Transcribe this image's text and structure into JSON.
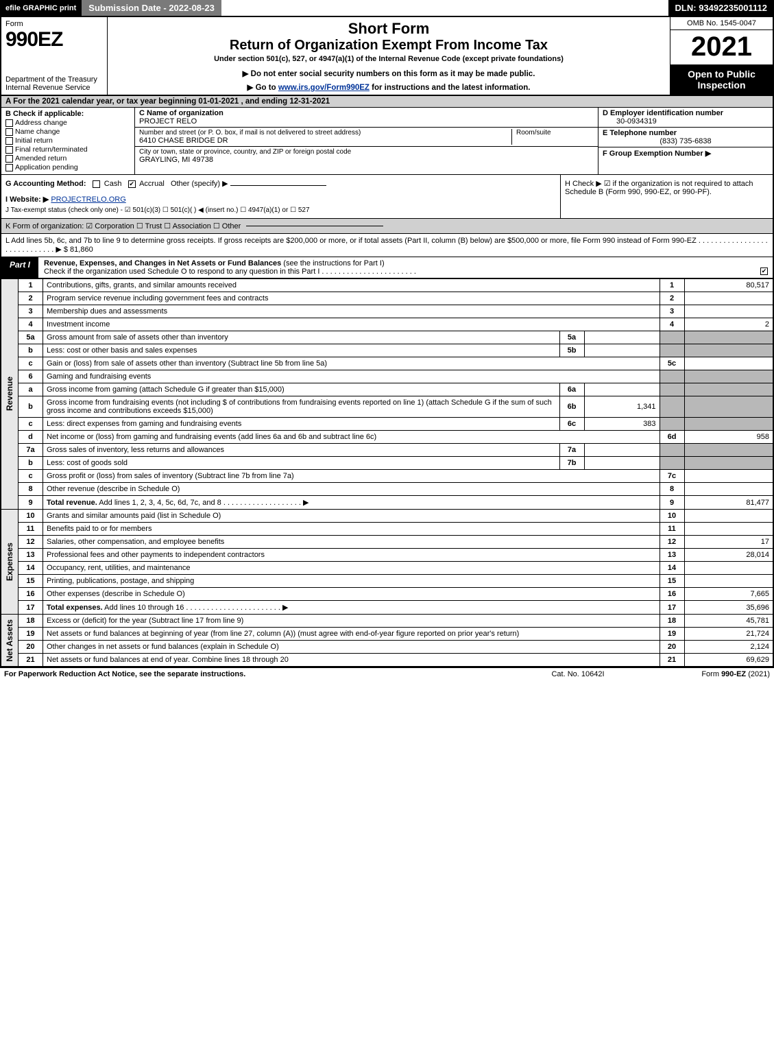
{
  "topbar": {
    "efile": "efile GRAPHIC print",
    "subdate_label": "Submission Date - 2022-08-23",
    "dln": "DLN: 93492235001112"
  },
  "header": {
    "form_word": "Form",
    "form_num": "990EZ",
    "dept": "Department of the Treasury\nInternal Revenue Service",
    "short_form": "Short Form",
    "title": "Return of Organization Exempt From Income Tax",
    "subtitle": "Under section 501(c), 527, or 4947(a)(1) of the Internal Revenue Code (except private foundations)",
    "note1": "▶ Do not enter social security numbers on this form as it may be made public.",
    "note2_pre": "▶ Go to ",
    "note2_link": "www.irs.gov/Form990EZ",
    "note2_post": " for instructions and the latest information.",
    "omb": "OMB No. 1545-0047",
    "year": "2021",
    "open": "Open to Public Inspection"
  },
  "A": "A  For the 2021 calendar year, or tax year beginning 01-01-2021 , and ending 12-31-2021",
  "B": {
    "hdr": "B  Check if applicable:",
    "opts": [
      "Address change",
      "Name change",
      "Initial return",
      "Final return/terminated",
      "Amended return",
      "Application pending"
    ]
  },
  "C": {
    "name_lbl": "C Name of organization",
    "name": "PROJECT RELO",
    "street_lbl": "Number and street (or P. O. box, if mail is not delivered to street address)",
    "street": "6410 CHASE BRIDGE DR",
    "room_lbl": "Room/suite",
    "city_lbl": "City or town, state or province, country, and ZIP or foreign postal code",
    "city": "GRAYLING, MI  49738"
  },
  "D": {
    "lbl": "D Employer identification number",
    "val": "30-0934319"
  },
  "E": {
    "lbl": "E Telephone number",
    "val": "(833) 735-6838"
  },
  "F": {
    "lbl": "F Group Exemption Number   ▶",
    "val": ""
  },
  "G": {
    "lbl": "G Accounting Method:",
    "cash": "Cash",
    "accrual": "Accrual",
    "other": "Other (specify) ▶"
  },
  "H": "H   Check ▶  ☑  if the organization is not required to attach Schedule B (Form 990, 990-EZ, or 990-PF).",
  "I": {
    "lbl": "I Website: ▶",
    "val": "PROJECTRELO.ORG"
  },
  "J": "J Tax-exempt status (check only one) -  ☑ 501(c)(3)  ☐ 501(c)(  ) ◀ (insert no.)  ☐ 4947(a)(1) or  ☐ 527",
  "K": "K Form of organization:   ☑ Corporation   ☐ Trust   ☐ Association   ☐ Other",
  "L": {
    "text": "L Add lines 5b, 6c, and 7b to line 9 to determine gross receipts. If gross receipts are $200,000 or more, or if total assets (Part II, column (B) below) are $500,000 or more, file Form 990 instead of Form 990-EZ  . . . . . . . . . . . . . . . . . . . . . . . . . . . . .  ▶ $",
    "amount": "81,860"
  },
  "partI": {
    "tab": "Part I",
    "title": "Revenue, Expenses, and Changes in Net Assets or Fund Balances",
    "note": "(see the instructions for Part I)",
    "sub": "Check if the organization used Schedule O to respond to any question in this Part I . . . . . . . . . . . . . . . . . . . . . . .",
    "checked": true
  },
  "sections": {
    "rev": "Revenue",
    "exp": "Expenses",
    "na": "Net Assets"
  },
  "rows": [
    {
      "n": "1",
      "d": "Contributions, gifts, grants, and similar amounts received",
      "r": "1",
      "a": "80,517"
    },
    {
      "n": "2",
      "d": "Program service revenue including government fees and contracts",
      "r": "2",
      "a": ""
    },
    {
      "n": "3",
      "d": "Membership dues and assessments",
      "r": "3",
      "a": ""
    },
    {
      "n": "4",
      "d": "Investment income",
      "r": "4",
      "a": "2"
    },
    {
      "n": "5a",
      "d": "Gross amount from sale of assets other than inventory",
      "sub": "5a",
      "suba": "",
      "grey": true
    },
    {
      "n": "b",
      "d": "Less: cost or other basis and sales expenses",
      "sub": "5b",
      "suba": "",
      "grey": true
    },
    {
      "n": "c",
      "d": "Gain or (loss) from sale of assets other than inventory (Subtract line 5b from line 5a)",
      "r": "5c",
      "a": ""
    },
    {
      "n": "6",
      "d": "Gaming and fundraising events",
      "grey": true,
      "nobox": true
    },
    {
      "n": "a",
      "d": "Gross income from gaming (attach Schedule G if greater than $15,000)",
      "sub": "6a",
      "suba": "",
      "grey": true
    },
    {
      "n": "b",
      "d": "Gross income from fundraising events (not including $                    of contributions from fundraising events reported on line 1) (attach Schedule G if the sum of such gross income and contributions exceeds $15,000)",
      "sub": "6b",
      "suba": "1,341",
      "grey": true
    },
    {
      "n": "c",
      "d": "Less: direct expenses from gaming and fundraising events",
      "sub": "6c",
      "suba": "383",
      "grey": true
    },
    {
      "n": "d",
      "d": "Net income or (loss) from gaming and fundraising events (add lines 6a and 6b and subtract line 6c)",
      "r": "6d",
      "a": "958"
    },
    {
      "n": "7a",
      "d": "Gross sales of inventory, less returns and allowances",
      "sub": "7a",
      "suba": "",
      "grey": true
    },
    {
      "n": "b",
      "d": "Less: cost of goods sold",
      "sub": "7b",
      "suba": "",
      "grey": true
    },
    {
      "n": "c",
      "d": "Gross profit or (loss) from sales of inventory (Subtract line 7b from line 7a)",
      "r": "7c",
      "a": ""
    },
    {
      "n": "8",
      "d": "Other revenue (describe in Schedule O)",
      "r": "8",
      "a": ""
    },
    {
      "n": "9",
      "d": "Total revenue. Add lines 1, 2, 3, 4, 5c, 6d, 7c, and 8   . . . . . . . . . . . . . . . . . . .   ▶",
      "r": "9",
      "a": "81,477",
      "bold": true
    }
  ],
  "exp_rows": [
    {
      "n": "10",
      "d": "Grants and similar amounts paid (list in Schedule O)",
      "r": "10",
      "a": ""
    },
    {
      "n": "11",
      "d": "Benefits paid to or for members",
      "r": "11",
      "a": ""
    },
    {
      "n": "12",
      "d": "Salaries, other compensation, and employee benefits",
      "r": "12",
      "a": "17"
    },
    {
      "n": "13",
      "d": "Professional fees and other payments to independent contractors",
      "r": "13",
      "a": "28,014"
    },
    {
      "n": "14",
      "d": "Occupancy, rent, utilities, and maintenance",
      "r": "14",
      "a": ""
    },
    {
      "n": "15",
      "d": "Printing, publications, postage, and shipping",
      "r": "15",
      "a": ""
    },
    {
      "n": "16",
      "d": "Other expenses (describe in Schedule O)",
      "r": "16",
      "a": "7,665"
    },
    {
      "n": "17",
      "d": "Total expenses. Add lines 10 through 16   . . . . . . . . . . . . . . . . . . . . . . .   ▶",
      "r": "17",
      "a": "35,696",
      "bold": true
    }
  ],
  "na_rows": [
    {
      "n": "18",
      "d": "Excess or (deficit) for the year (Subtract line 17 from line 9)",
      "r": "18",
      "a": "45,781"
    },
    {
      "n": "19",
      "d": "Net assets or fund balances at beginning of year (from line 27, column (A)) (must agree with end-of-year figure reported on prior year's return)",
      "r": "19",
      "a": "21,724"
    },
    {
      "n": "20",
      "d": "Other changes in net assets or fund balances (explain in Schedule O)",
      "r": "20",
      "a": "2,124"
    },
    {
      "n": "21",
      "d": "Net assets or fund balances at end of year. Combine lines 18 through 20",
      "r": "21",
      "a": "69,629"
    }
  ],
  "footer": {
    "l": "For Paperwork Reduction Act Notice, see the separate instructions.",
    "c": "Cat. No. 10642I",
    "r_pre": "Form ",
    "r_form": "990-EZ",
    "r_post": " (2021)"
  }
}
